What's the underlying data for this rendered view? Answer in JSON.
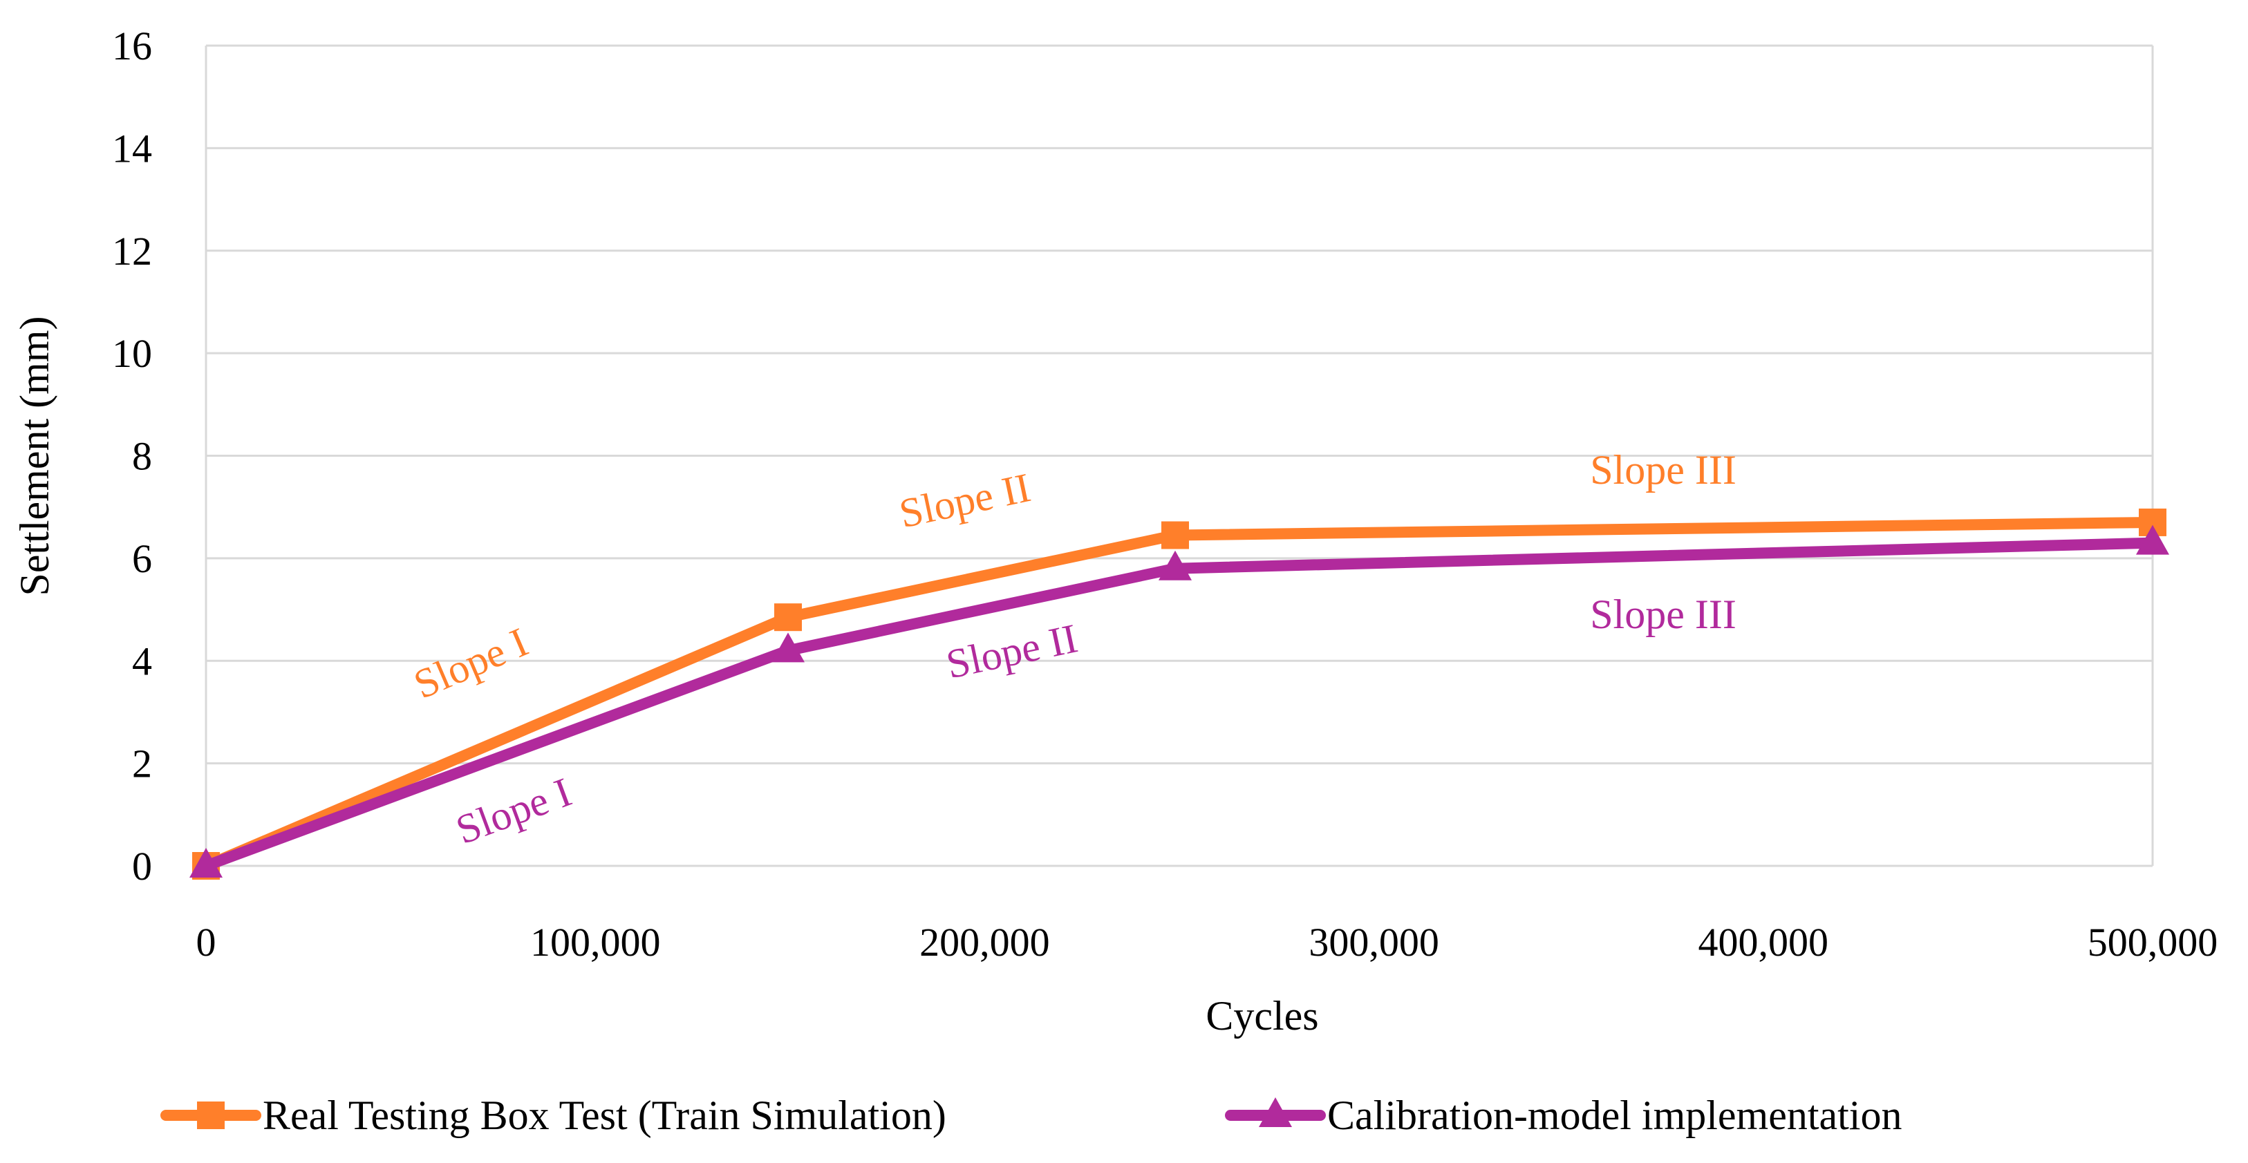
{
  "chart_data": {
    "type": "line",
    "title": "",
    "xlabel": "Cycles",
    "ylabel": "Settlement (mm)",
    "x_tick_labels": [
      "0",
      "100,000",
      "200,000",
      "300,000",
      "400,000",
      "500,000"
    ],
    "y_ticks": [
      0,
      2,
      4,
      6,
      8,
      10,
      12,
      14,
      16
    ],
    "ylim": [
      0,
      16
    ],
    "grid": true,
    "legend_position": "bottom",
    "series": [
      {
        "name": "Real Testing Box Test (Train Simulation)",
        "color": "#FF7F2A",
        "marker": "square",
        "points": [
          {
            "cycles": 0,
            "settlement": 0.0
          },
          {
            "cycles": 150000,
            "settlement": 4.85
          },
          {
            "cycles": 250000,
            "settlement": 6.45
          },
          {
            "cycles": 500000,
            "settlement": 6.7
          }
        ]
      },
      {
        "name": "Calibration-model implementation",
        "color": "#B12A9C",
        "marker": "triangle",
        "points": [
          {
            "cycles": 0,
            "settlement": 0.0
          },
          {
            "cycles": 150000,
            "settlement": 4.2
          },
          {
            "cycles": 250000,
            "settlement": 5.8
          },
          {
            "cycles": 500000,
            "settlement": 6.3
          }
        ]
      }
    ],
    "annotations": [
      {
        "text": "Slope I",
        "series": 0,
        "segment": 0
      },
      {
        "text": "Slope II",
        "series": 0,
        "segment": 1
      },
      {
        "text": "Slope III",
        "series": 0,
        "segment": 2
      },
      {
        "text": "Slope I",
        "series": 1,
        "segment": 0
      },
      {
        "text": "Slope II",
        "series": 1,
        "segment": 1
      },
      {
        "text": "Slope III",
        "series": 1,
        "segment": 2
      }
    ]
  }
}
